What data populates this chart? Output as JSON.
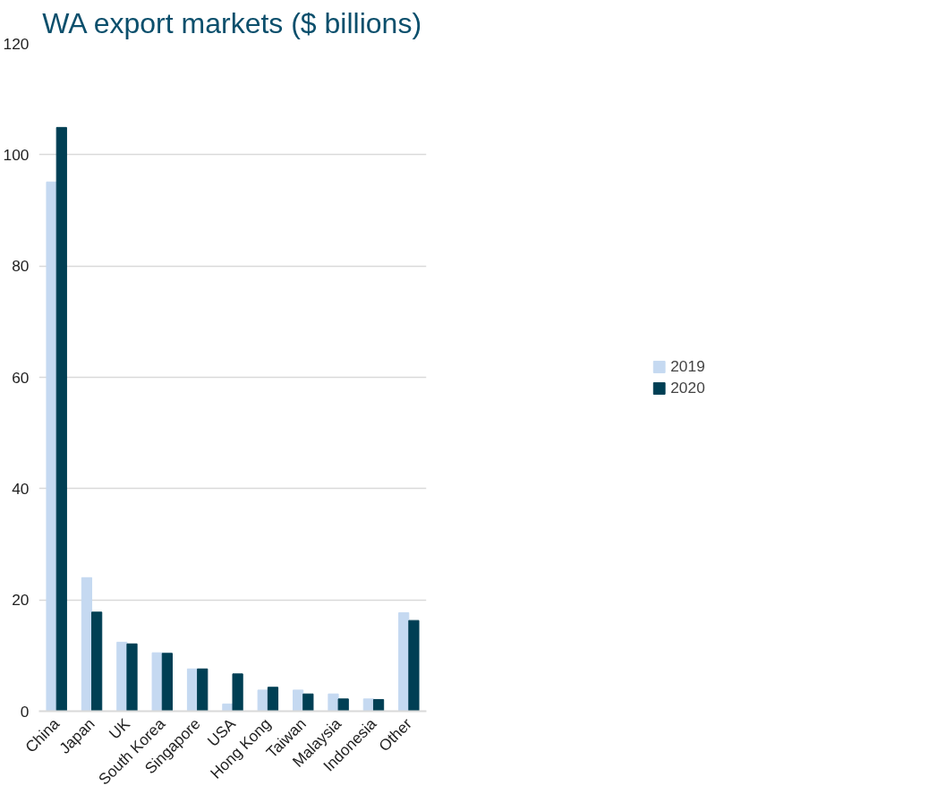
{
  "chart_data": {
    "type": "bar",
    "title": "WA export markets ($ billions)",
    "categories": [
      "China",
      "Japan",
      "UK",
      "South Korea",
      "Singapore",
      "USA",
      "Hong Kong",
      "Taiwan",
      "Malaysia",
      "Indonesia",
      "Other"
    ],
    "series": [
      {
        "name": "2019",
        "color": "#c5d9f1",
        "values": [
          95.1,
          24.0,
          12.4,
          10.5,
          7.6,
          1.3,
          3.8,
          3.8,
          3.1,
          2.2,
          17.7
        ]
      },
      {
        "name": "2020",
        "color": "#003f54",
        "values": [
          104.9,
          17.8,
          12.1,
          10.4,
          7.6,
          6.7,
          4.3,
          3.1,
          2.2,
          2.1,
          16.3
        ]
      }
    ],
    "ylim": [
      0,
      120
    ],
    "yticks": [
      0,
      20,
      40,
      60,
      80,
      100,
      120
    ],
    "grid": "y",
    "legend": "right"
  }
}
